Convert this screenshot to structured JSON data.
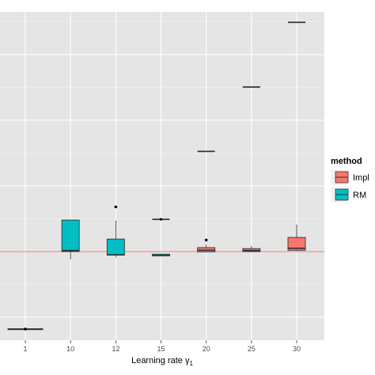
{
  "chart_data": {
    "type": "box",
    "x_categories": [
      "1",
      "10",
      "12",
      "15",
      "20",
      "25",
      "30"
    ],
    "xlabel": "Learning rate γ",
    "xlabel_subscript": "1",
    "ylabel": "",
    "ylim": [
      0,
      100
    ],
    "y_tick_labels_visible": false,
    "grid": true,
    "background": "#E5E5E5",
    "reference_line": {
      "y": 27,
      "color": "#F8766D"
    },
    "legend": {
      "title": "method",
      "placement": "right",
      "entries": [
        {
          "label": "Impl",
          "color": "#F8766D"
        },
        {
          "label": "RM",
          "color": "#00BFC4"
        }
      ]
    },
    "series": [
      {
        "name": "Impl",
        "color": "#F8766D",
        "boxes": [
          {
            "x": "20",
            "min": 26.8,
            "q1": 26.9,
            "median": 27.4,
            "q3": 28.2,
            "max": 29.1,
            "outliers": [
              30.5
            ]
          },
          {
            "x": "25",
            "min": 26.8,
            "q1": 27.0,
            "median": 27.3,
            "q3": 27.9,
            "max": 28.7,
            "outliers": []
          },
          {
            "x": "30",
            "min": 27.2,
            "q1": 27.4,
            "median": 28.0,
            "q3": 31.3,
            "max": 35.2,
            "outliers": []
          }
        ]
      },
      {
        "name": "RM",
        "color": "#00BFC4",
        "boxes": [
          {
            "x": "1",
            "min": 3.2,
            "q1": 3.3,
            "median": 3.4,
            "q3": 3.5,
            "max": 3.6,
            "outliers": [
              3.4
            ]
          },
          {
            "x": "10",
            "min": 24.6,
            "q1": 27.0,
            "median": 27.3,
            "q3": 36.6,
            "max": 36.6,
            "outliers": []
          },
          {
            "x": "12",
            "min": 25.2,
            "q1": 25.9,
            "median": 26.0,
            "q3": 30.8,
            "max": 36.4,
            "outliers": [
              40.6
            ]
          },
          {
            "x": "15",
            "min": 25.5,
            "q1": 25.7,
            "median": 25.8,
            "q3": 26.2,
            "max": 26.4,
            "outliers": []
          }
        ]
      }
    ],
    "single_values": [
      {
        "x": "15",
        "value": 36.8
      },
      {
        "x": "20",
        "value": 57.5
      },
      {
        "x": "25",
        "value": 77.1
      },
      {
        "x": "30",
        "value": 96.8
      }
    ]
  }
}
